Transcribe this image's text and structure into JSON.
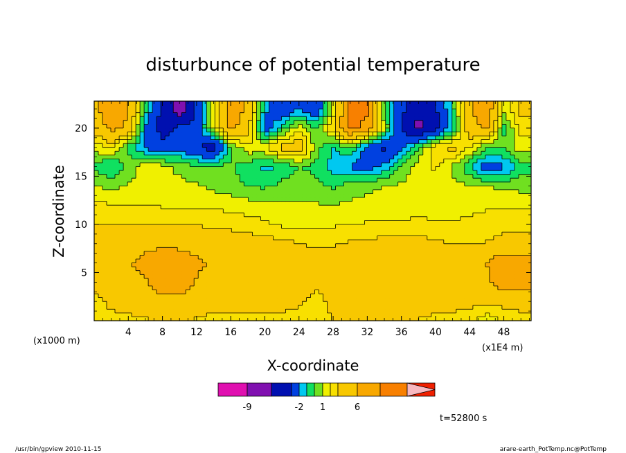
{
  "chart_data": {
    "type": "heatmap",
    "title": "disturbunce of potential temperature",
    "xlabel": "X-coordinate",
    "ylabel": "Z-coordinate",
    "x_unit": "(x1E4 m)",
    "y_unit": "(x1000 m)",
    "x_ticks": [
      "4",
      "8",
      "12",
      "16",
      "20",
      "24",
      "28",
      "32",
      "36",
      "40",
      "44",
      "48"
    ],
    "x_tick_values": [
      4,
      8,
      12,
      16,
      20,
      24,
      28,
      32,
      36,
      40,
      44,
      48
    ],
    "y_ticks": [
      "5",
      "10",
      "15",
      "20"
    ],
    "y_tick_values": [
      5,
      10,
      15,
      20
    ],
    "xlim": [
      0,
      51.2
    ],
    "ylim": [
      0,
      22.8
    ],
    "grid": false,
    "colorbar": {
      "colors": [
        "#e010b0",
        "#8010b0",
        "#0010b0",
        "#0040e0",
        "#00c8f0",
        "#10e060",
        "#70e020",
        "#f0f000",
        "#f8e000",
        "#f8c800",
        "#f8a800",
        "#f88000",
        "#f02000",
        "#f87070",
        "#f8b8c0"
      ],
      "labels": [
        "-9",
        "-2",
        "1",
        "6"
      ],
      "label_bins": [
        1,
        5,
        7,
        11
      ]
    },
    "field": {
      "x": [
        0,
        2,
        4,
        6,
        8,
        10,
        12,
        14,
        16,
        18,
        20,
        22,
        24,
        26,
        28,
        30,
        32,
        34,
        36,
        38,
        40,
        42,
        44,
        46,
        48,
        50
      ],
      "z": [
        0,
        2,
        4,
        6,
        8,
        10,
        12,
        14,
        16,
        18,
        20,
        22
      ],
      "values": [
        [
          1.2,
          1.5,
          1.6,
          1.8,
          2.2,
          2.4,
          1.8,
          1.5,
          1.5,
          1.4,
          1.5,
          1.3,
          1.4,
          1.6,
          2.0,
          2.2,
          2.1,
          2.0,
          2.0,
          1.9,
          1.6,
          1.5,
          1.2,
          0.4,
          1.2,
          1.5
        ],
        [
          1.4,
          2.4,
          2.8,
          3.0,
          3.3,
          3.4,
          3.2,
          2.6,
          2.6,
          2.8,
          3.0,
          2.8,
          2.2,
          1.4,
          2.4,
          3.0,
          3.1,
          3.0,
          3.0,
          3.0,
          2.8,
          2.6,
          2.4,
          2.2,
          2.4,
          2.6
        ],
        [
          2.6,
          3.1,
          3.4,
          3.8,
          5.3,
          5.0,
          3.8,
          3.2,
          3.2,
          3.3,
          3.3,
          3.0,
          2.8,
          2.4,
          3.0,
          3.3,
          3.4,
          3.4,
          3.6,
          3.6,
          3.2,
          3.1,
          3.2,
          3.6,
          5.3,
          5.0
        ],
        [
          2.8,
          3.3,
          3.8,
          4.6,
          5.6,
          5.3,
          4.4,
          3.7,
          3.5,
          3.4,
          3.4,
          3.3,
          3.2,
          3.0,
          3.3,
          3.5,
          3.6,
          3.6,
          3.7,
          3.6,
          3.3,
          3.2,
          3.4,
          4.0,
          5.6,
          5.4
        ],
        [
          2.4,
          2.8,
          3.2,
          3.4,
          3.5,
          3.4,
          3.2,
          3.0,
          2.8,
          2.6,
          2.5,
          2.4,
          2.0,
          1.6,
          1.8,
          2.2,
          2.3,
          2.4,
          2.5,
          2.4,
          2.2,
          2.0,
          1.9,
          2.1,
          2.3,
          2.4
        ],
        [
          2.0,
          2.1,
          2.1,
          2.0,
          1.9,
          1.9,
          1.9,
          1.8,
          1.7,
          1.5,
          1.2,
          0.8,
          0.7,
          0.8,
          0.9,
          1.0,
          1.1,
          1.2,
          1.3,
          1.4,
          1.3,
          1.2,
          1.3,
          1.5,
          1.7,
          1.8
        ],
        [
          1.2,
          1.1,
          1.1,
          1.0,
          0.9,
          0.9,
          0.9,
          0.8,
          0.6,
          0.4,
          0.3,
          0.2,
          0.1,
          0.1,
          0.0,
          0.2,
          0.3,
          0.2,
          0.2,
          0.2,
          0.1,
          0.3,
          0.6,
          0.8,
          0.9,
          0.9
        ],
        [
          0.0,
          -0.3,
          0.1,
          0.2,
          0.3,
          0.4,
          0.1,
          -0.3,
          -0.6,
          -1.0,
          -1.2,
          -0.7,
          -0.3,
          -0.8,
          -1.2,
          -0.5,
          -0.2,
          0.0,
          0.2,
          0.3,
          0.3,
          0.2,
          0.1,
          0.0,
          -0.2,
          -0.4
        ],
        [
          -1.2,
          -2.2,
          -0.5,
          0.6,
          0.4,
          -0.4,
          -0.8,
          -0.7,
          -0.8,
          -1.6,
          -2.3,
          -1.8,
          -1.0,
          -1.2,
          -2.4,
          -3.2,
          -3.6,
          -2.6,
          -0.8,
          0.6,
          1.2,
          -0.2,
          -1.8,
          -3.8,
          -3.2,
          -1.5
        ],
        [
          0.4,
          1.2,
          -1.4,
          -3.2,
          -4.2,
          -3.6,
          -4.8,
          -6.0,
          -1.2,
          0.8,
          0.8,
          2.6,
          3.2,
          -0.5,
          -2.2,
          -1.0,
          -3.6,
          -5.6,
          -3.4,
          -1.0,
          1.6,
          2.5,
          1.0,
          -1.0,
          -0.8,
          0.6
        ],
        [
          2.4,
          4.6,
          3.5,
          -3.2,
          -6.0,
          -4.6,
          -4.2,
          0.6,
          4.8,
          2.4,
          -3.8,
          -1.6,
          0.6,
          -1.0,
          2.0,
          6.8,
          5.0,
          0.4,
          -5.2,
          -7.6,
          -5.6,
          -2.0,
          3.2,
          4.2,
          -1.2,
          1.2
        ],
        [
          3.4,
          5.5,
          4.4,
          -1.4,
          -5.6,
          -8.2,
          -4.8,
          1.2,
          5.2,
          3.6,
          -2.6,
          -4.6,
          -3.0,
          -4.4,
          0.4,
          7.0,
          6.4,
          -1.2,
          -4.6,
          -6.6,
          -5.4,
          -1.4,
          3.6,
          5.6,
          0.2,
          2.6
        ]
      ]
    }
  },
  "footer": {
    "time": "t=52800 s",
    "program": "/usr/bin/gpview   2010-11-15",
    "source": "arare-earth_PotTemp.nc@PotTemp"
  }
}
